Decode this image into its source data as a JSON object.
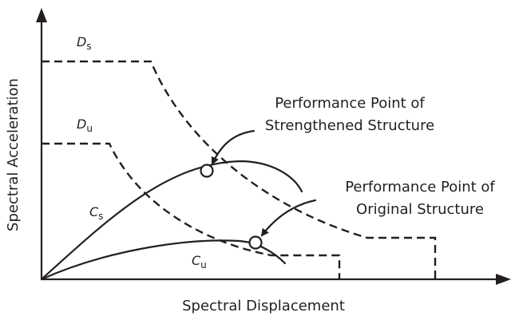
{
  "axes": {
    "x_label": "Spectral Displacement",
    "y_label": "Spectral Acceleration"
  },
  "curves": {
    "demand_strengthened": {
      "main": "D",
      "sub": "s"
    },
    "demand_original": {
      "main": "D",
      "sub": "u"
    },
    "capacity_strengthened": {
      "main": "C",
      "sub": "s"
    },
    "capacity_original": {
      "main": "C",
      "sub": "u"
    }
  },
  "annotations": {
    "strengthened_line1": "Performance Point of",
    "strengthened_line2": "Strengthened Structure",
    "original_line1": "Performance Point of",
    "original_line2": "Original Structure"
  }
}
